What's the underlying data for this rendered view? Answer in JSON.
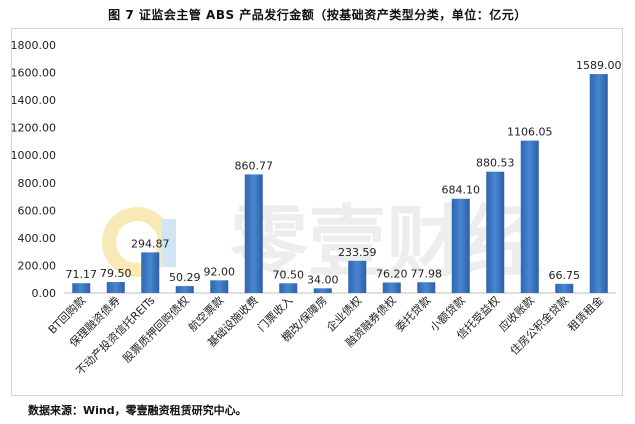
{
  "header": {
    "title": "图 7 证监会主管 ABS 产品发行金额（按基础资产类型分类，单位：亿元）"
  },
  "footer": {
    "source": "数据来源：Wind，零壹融资租赁研究中心。"
  },
  "watermark": {
    "text": "零壹财经",
    "color": "#c9c9c9"
  },
  "chart_data": {
    "type": "bar",
    "title": "图 7 证监会主管 ABS 产品发行金额（按基础资产类型分类，单位：亿元）",
    "categories": [
      "BT回购款",
      "保理融资债券",
      "不动产投资信托REITs",
      "股票质押回购债权",
      "航空票款",
      "基础设施收费",
      "门票收入",
      "棚改/保障房",
      "企业债权",
      "融资融券债权",
      "委托贷款",
      "小额贷款",
      "信托受益权",
      "应收账款",
      "住房公积金贷款",
      "租赁租金"
    ],
    "values": [
      71.17,
      79.5,
      294.87,
      50.29,
      92.0,
      860.77,
      70.5,
      34.0,
      233.59,
      76.2,
      77.98,
      684.1,
      880.53,
      1106.05,
      66.75,
      1589.0
    ],
    "data_labels": [
      "71.17",
      "79.50",
      "294.87",
      "50.29",
      "92.00",
      "860.77",
      "70.50",
      "34.00",
      "233.59",
      "76.20",
      "77.98",
      "684.10",
      "880.53",
      "1106.05",
      "66.75",
      "1589.00"
    ],
    "yticks": [
      "0.00",
      "200.00",
      "400.00",
      "600.00",
      "800.00",
      "1000.00",
      "1200.00",
      "1400.00",
      "1600.00",
      "1800.00"
    ],
    "ylim": [
      0,
      1800
    ],
    "xlabel": "",
    "ylabel": "",
    "grid": false,
    "legend": "none",
    "bar_color": "#3a75c0"
  }
}
